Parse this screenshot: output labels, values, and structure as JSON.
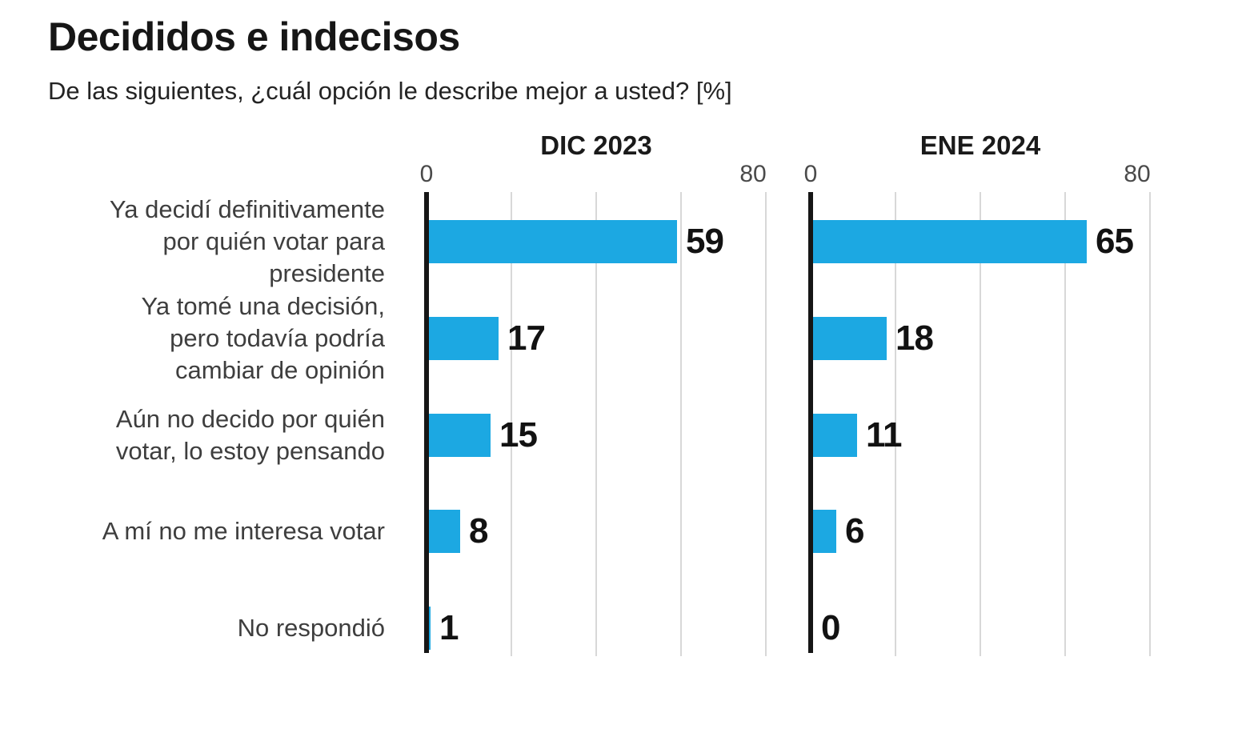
{
  "header": {
    "title": "Decididos e indecisos",
    "subtitle": "De las siguientes, ¿cuál opción le describe mejor a usted? [%]"
  },
  "chart_data": {
    "type": "bar",
    "orientation": "horizontal",
    "title": "Decididos e indecisos",
    "subtitle": "De las siguientes, ¿cuál opción le describe mejor a usted? [%]",
    "unit": "%",
    "categories": [
      "Ya decidí definitivamente por quién votar para presidente",
      "Ya tomé una decisión, pero todavía podría cambiar de opinión",
      "Aún no decido por quién votar, lo estoy pensando",
      "A mí no me interesa votar",
      "No respondió"
    ],
    "category_lines": [
      [
        "Ya decidí definitivamente",
        "por quién votar para",
        "presidente"
      ],
      [
        "Ya tomé una decisión,",
        "pero todavía podría",
        "cambiar de opinión"
      ],
      [
        "Aún no decido por quién",
        "votar, lo estoy pensando"
      ],
      [
        "A mí no me interesa votar"
      ],
      [
        "No respondió"
      ]
    ],
    "series": [
      {
        "name": "DIC 2023",
        "values": [
          59,
          17,
          15,
          8,
          1
        ]
      },
      {
        "name": "ENE 2024",
        "values": [
          65,
          18,
          11,
          6,
          0
        ]
      }
    ],
    "xlim": [
      0,
      80
    ],
    "xticks": [
      0,
      80
    ],
    "gridlines": [
      20,
      40,
      60,
      80
    ],
    "grid": true,
    "legend_position": "panel-headers",
    "colors": {
      "bar": "#1CA8E2",
      "axis": "#161616",
      "gridline": "#D8D8D8",
      "title": "#161616",
      "subtitle": "#242424",
      "panel_title": "#1A1A1A",
      "tick_label": "#4A4A4A",
      "category_label": "#3E3E3E",
      "value_label": "#121212",
      "background": "#FFFFFF"
    }
  }
}
